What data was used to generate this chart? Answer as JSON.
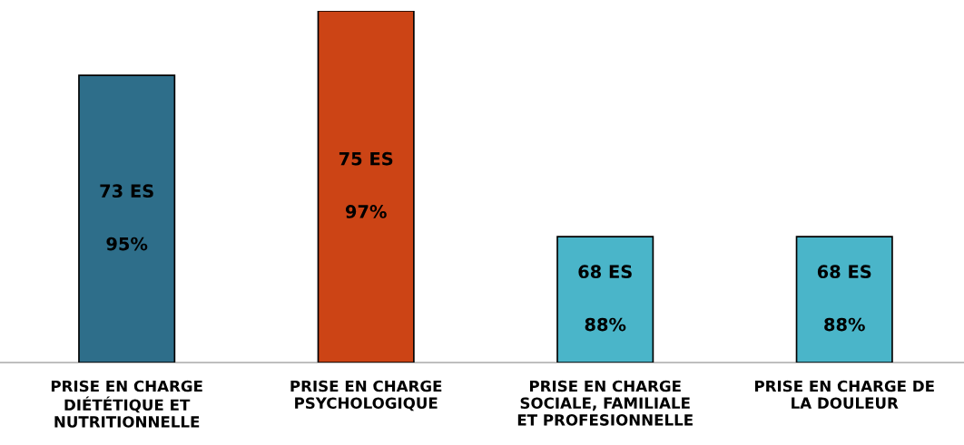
{
  "chart_data": {
    "type": "bar",
    "ylim": [
      64.1,
      75
    ],
    "categories": [
      "PRISE EN CHARGE\nDIÉTÉTIQUE ET\nNUTRITIONNELLE",
      "PRISE EN CHARGE\nPSYCHOLOGIQUE",
      "PRISE EN CHARGE\nSOCIALE, FAMILIALE\nET PROFESIONNELLE",
      "PRISE EN CHARGE DE\nLA DOULEUR"
    ],
    "values": [
      73,
      75,
      68,
      68
    ],
    "colors": [
      "#2e6e8a",
      "#cc4415",
      "#4ab5c9",
      "#4ab5c9"
    ],
    "value_labels": [
      "73 ES",
      "75 ES",
      "68 ES",
      "68 ES"
    ],
    "annotations": [
      "95%",
      "97%",
      "88%",
      "88%"
    ],
    "grid": false,
    "legend": false
  }
}
